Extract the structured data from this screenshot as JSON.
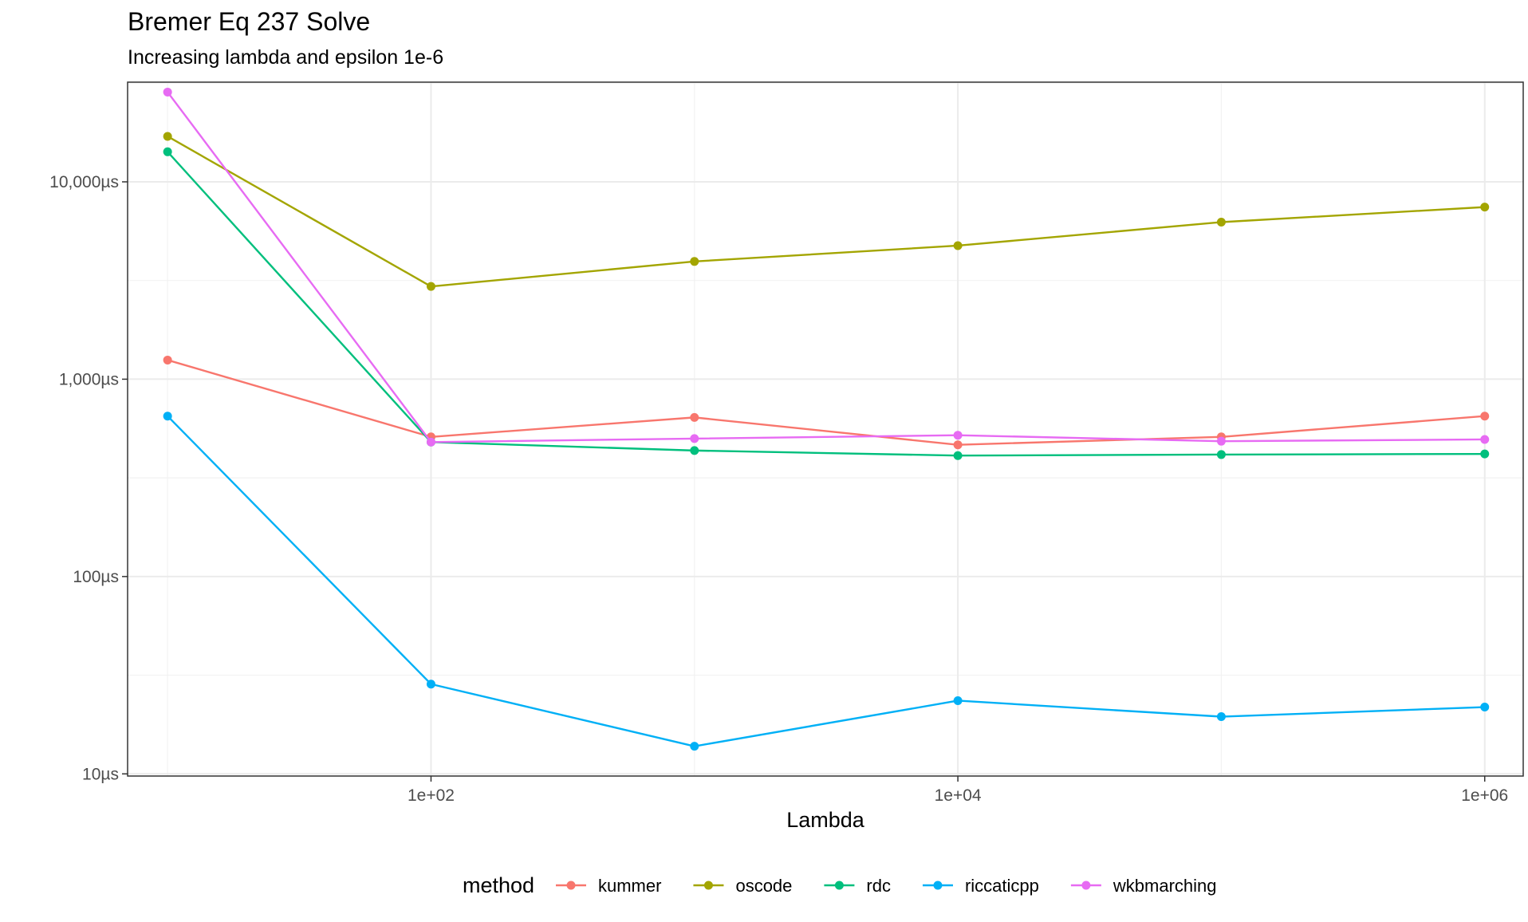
{
  "chart_data": {
    "type": "line",
    "title": "Bremer Eq 237 Solve",
    "subtitle": "Increasing lambda and epsilon 1e-6",
    "xlabel": "Lambda",
    "ylabel": "",
    "x_scale": "log10",
    "y_scale": "log10",
    "x": [
      10,
      100,
      1000,
      10000,
      100000,
      1000000
    ],
    "xlim": [
      7.05,
      1400000
    ],
    "ylim": [
      9.75,
      32000
    ],
    "x_ticks": [
      {
        "value": 100,
        "label": "1e+02"
      },
      {
        "value": 10000,
        "label": "1e+04"
      },
      {
        "value": 1000000,
        "label": "1e+06"
      }
    ],
    "y_ticks": [
      {
        "value": 10,
        "label": "10µs"
      },
      {
        "value": 100,
        "label": "100µs"
      },
      {
        "value": 1000,
        "label": "1,000µs"
      },
      {
        "value": 10000,
        "label": "10,000µs"
      }
    ],
    "grid": true,
    "legend": {
      "title": "method",
      "position": "bottom"
    },
    "series": [
      {
        "name": "kummer",
        "color": "#F8766D",
        "values": [
          1250,
          510,
          640,
          465,
          510,
          650
        ]
      },
      {
        "name": "oscode",
        "color": "#A3A500",
        "values": [
          17000,
          2950,
          3950,
          4750,
          6250,
          7450
        ]
      },
      {
        "name": "rdc",
        "color": "#00BF7D",
        "values": [
          14200,
          480,
          435,
          410,
          415,
          418
        ]
      },
      {
        "name": "riccaticpp",
        "color": "#00B0F6",
        "values": [
          650,
          28.5,
          13.8,
          23.5,
          19.5,
          21.8
        ]
      },
      {
        "name": "wkbmarching",
        "color": "#E76BF3",
        "values": [
          28500,
          480,
          500,
          520,
          485,
          495
        ]
      }
    ]
  }
}
